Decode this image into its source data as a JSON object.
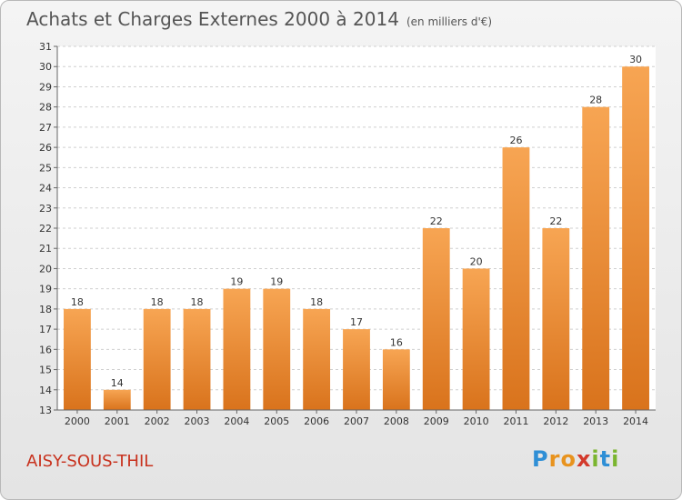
{
  "chart_data": {
    "type": "bar",
    "title": "Achats et Charges Externes 2000 à 2014",
    "subtitle": "(en milliers d'€)",
    "categories": [
      "2000",
      "2001",
      "2002",
      "2003",
      "2004",
      "2005",
      "2006",
      "2007",
      "2008",
      "2009",
      "2010",
      "2011",
      "2012",
      "2013",
      "2014"
    ],
    "values": [
      18,
      14,
      18,
      18,
      19,
      19,
      18,
      17,
      16,
      22,
      20,
      26,
      22,
      28,
      30
    ],
    "ylim": [
      13,
      31
    ],
    "yticks": [
      13,
      14,
      15,
      16,
      17,
      18,
      19,
      20,
      21,
      22,
      23,
      24,
      25,
      26,
      27,
      28,
      29,
      30,
      31
    ],
    "grid": true,
    "bar_color_top": "#f7a553",
    "bar_color_bottom": "#d9731c",
    "legend": false
  },
  "place_name": "AISY-SOUS-THIL",
  "logo": {
    "letters": [
      "P",
      "r",
      "o",
      "x",
      "i",
      "t",
      "i"
    ],
    "colors": [
      "#2f8fd6",
      "#e8931e",
      "#e8931e",
      "#d33a2c",
      "#7ab52f",
      "#2f8fd6",
      "#7ab52f"
    ]
  }
}
